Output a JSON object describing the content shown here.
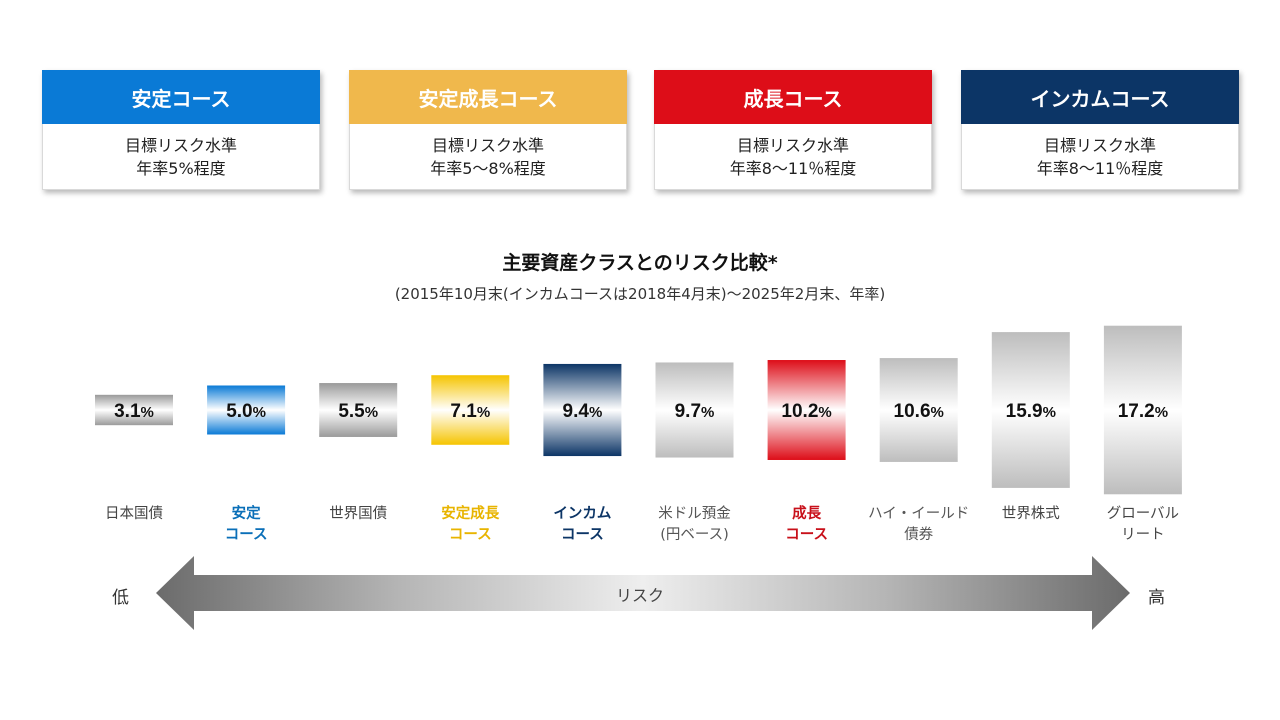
{
  "courses": [
    {
      "title": "安定コース",
      "line1": "目標リスク水準",
      "line2": "年率5%程度",
      "color": "#0a7ad6"
    },
    {
      "title": "安定成長コース",
      "line1": "目標リスク水準",
      "line2": "年率5～8%程度",
      "color": "#f0b84c"
    },
    {
      "title": "成長コース",
      "line1": "目標リスク水準",
      "line2": "年率8～11％程度",
      "color": "#dd0d18"
    },
    {
      "title": "インカムコース",
      "line1": "目標リスク水準",
      "line2": "年率8～11％程度",
      "color": "#0c3566"
    }
  ],
  "chart_data": {
    "type": "bar",
    "title": "主要資産クラスとのリスク比較*",
    "subtitle": "(2015年10月末(インカムコースは2018年4月末)～2025年2月末、年率)",
    "unit": "%",
    "categories": [
      [
        "日本国債"
      ],
      [
        "安定",
        "コース"
      ],
      [
        "世界国債"
      ],
      [
        "安定成長",
        "コース"
      ],
      [
        "インカム",
        "コース"
      ],
      [
        "米ドル預金",
        "(円ベース)"
      ],
      [
        "成長",
        "コース"
      ],
      [
        "ハイ・イールド",
        "債券"
      ],
      [
        "世界株式"
      ],
      [
        "グローバル",
        "リート"
      ]
    ],
    "values": [
      3.1,
      5.0,
      5.5,
      7.1,
      9.4,
      9.7,
      10.2,
      10.6,
      15.9,
      17.2
    ],
    "value_labels": [
      "3.1",
      "5.0",
      "5.5",
      "7.1",
      "9.4",
      "9.7",
      "10.2",
      "10.6",
      "15.9",
      "17.2"
    ],
    "bar_colors": [
      "#9a9a9a",
      "#0a7ad6",
      "#9a9a9a",
      "#f5c400",
      "#0c3566",
      "#bdbdbd",
      "#dd0d18",
      "#bdbdbd",
      "#bdbdbd",
      "#bdbdbd"
    ],
    "label_colors": [
      "#444444",
      "#0a6fb8",
      "#444444",
      "#e8b400",
      "#0c3566",
      "#555555",
      "#c8101a",
      "#555555",
      "#444444",
      "#444444"
    ],
    "axis_label": "リスク",
    "low_label": "低",
    "high_label": "高"
  }
}
